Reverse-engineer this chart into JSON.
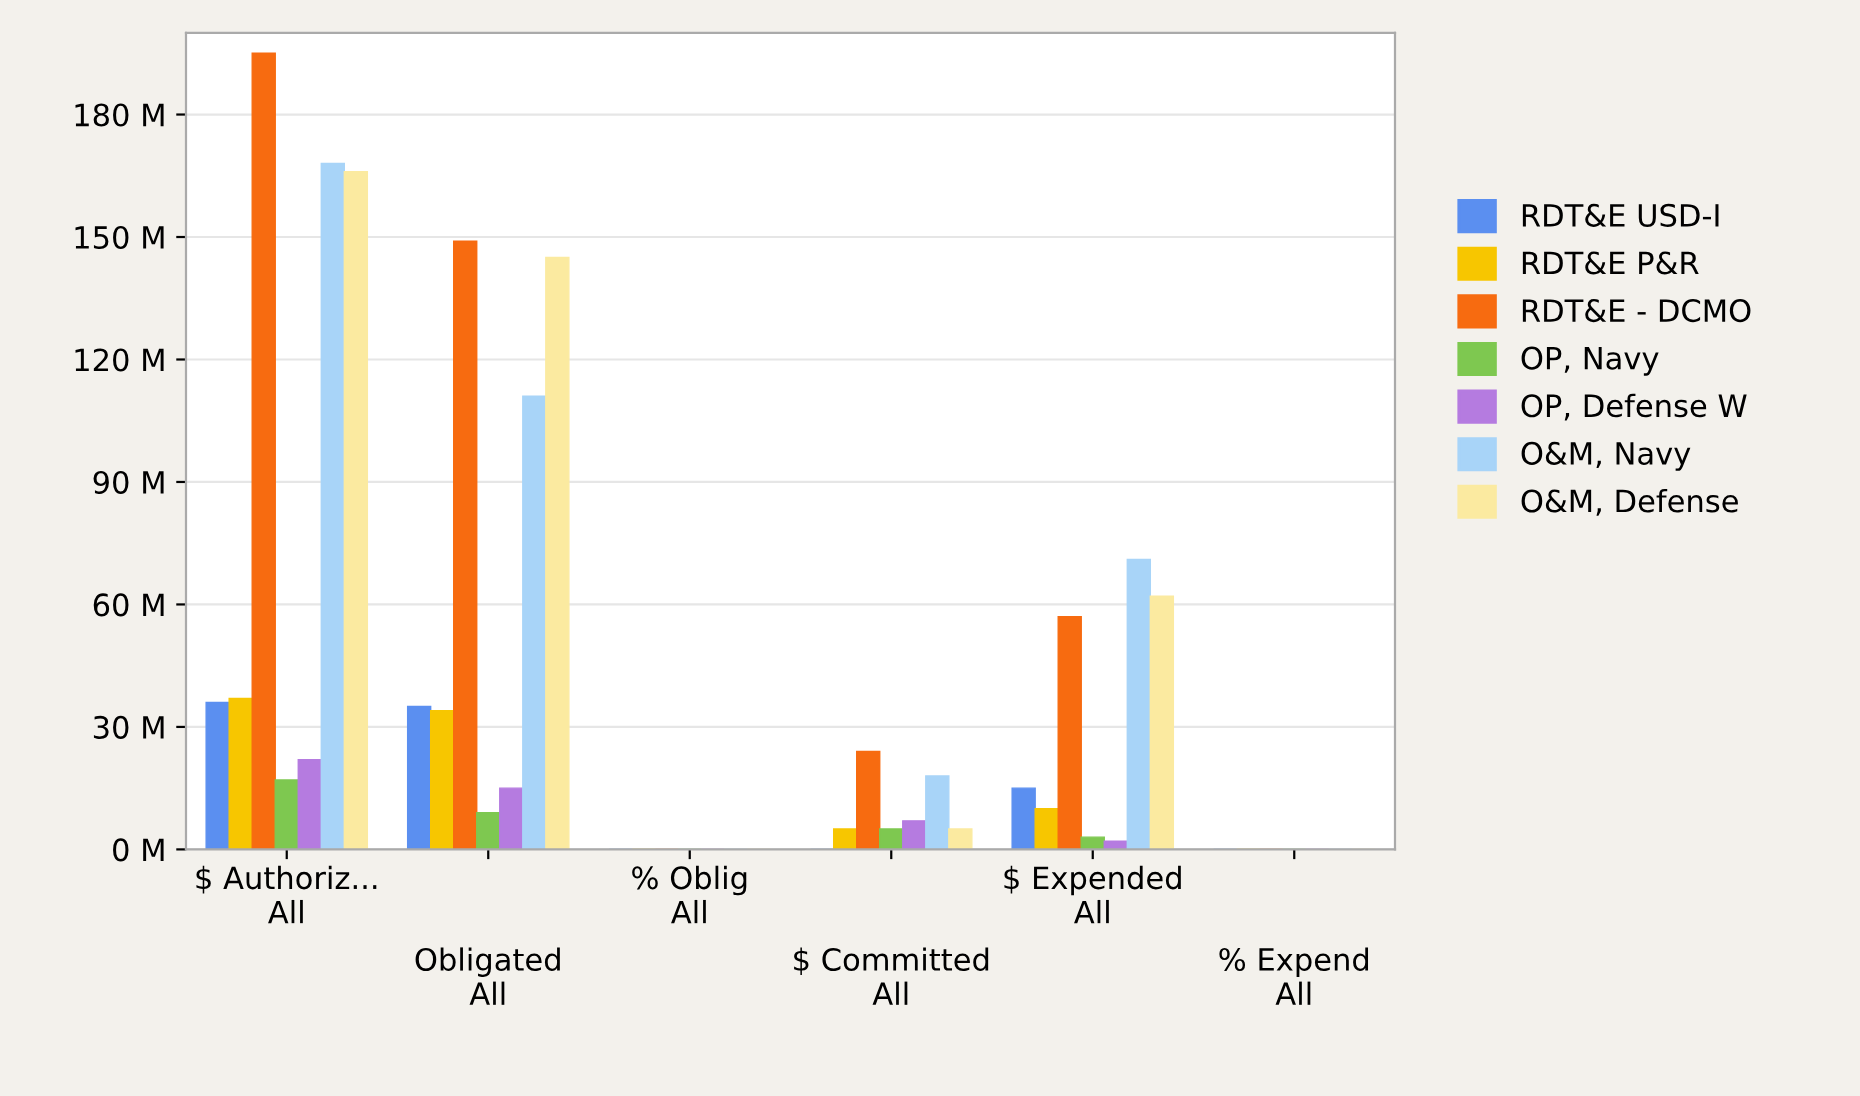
{
  "chart_data": {
    "type": "bar",
    "categories": [
      "$ Authoriz...\nAll",
      "Obligated\nAll",
      "% Oblig\nAll",
      "$ Committed\nAll",
      "$ Expended\nAll",
      "% Expend\nAll"
    ],
    "series": [
      {
        "name": "RDT&E USD-I",
        "color": "#5b8ff0",
        "values": [
          36,
          35,
          0,
          0,
          15,
          0
        ]
      },
      {
        "name": "RDT&E P&R",
        "color": "#f7c600",
        "values": [
          37,
          34,
          0,
          5,
          10,
          0
        ]
      },
      {
        "name": "RDT&E - DCMO",
        "color": "#f76b10",
        "values": [
          195,
          149,
          0,
          24,
          57,
          0
        ]
      },
      {
        "name": "OP, Navy",
        "color": "#7ec850",
        "values": [
          17,
          9,
          0,
          5,
          3,
          0
        ]
      },
      {
        "name": "OP, Defense W",
        "color": "#b57be0",
        "values": [
          22,
          15,
          0,
          7,
          2,
          0
        ]
      },
      {
        "name": "O&M, Navy",
        "color": "#a8d4f8",
        "values": [
          168,
          111,
          0,
          18,
          71,
          0
        ]
      },
      {
        "name": "O&M, Defense",
        "color": "#fbeaa0",
        "values": [
          166,
          145,
          0,
          5,
          62,
          0
        ]
      }
    ],
    "ylim": [
      0,
      200
    ],
    "yticks": [
      {
        "value": 0,
        "label": "0 M"
      },
      {
        "value": 30,
        "label": "30 M"
      },
      {
        "value": 60,
        "label": "60 M"
      },
      {
        "value": 90,
        "label": "90 M"
      },
      {
        "value": 120,
        "label": "120 M"
      },
      {
        "value": 150,
        "label": "150 M"
      },
      {
        "value": 180,
        "label": "180 M"
      }
    ],
    "grid": "y",
    "legend": "right"
  }
}
